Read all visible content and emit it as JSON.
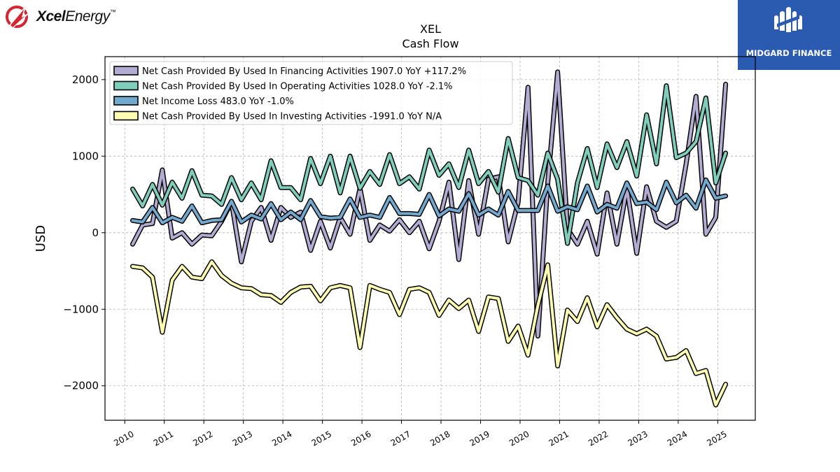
{
  "branding": {
    "left_logo_bold": "Xcel",
    "left_logo_light": "Energy",
    "left_logo_mark": "™",
    "right_logo_text": "MIDGARD FINANCE"
  },
  "colors": {
    "financing": "#b2abd2",
    "operating": "#7fcdbb",
    "net_income": "#74a9cf",
    "investing": "#ffffb3",
    "outline": "#000000",
    "brand_blue": "#2a5bb0",
    "xcel_red": "#d6252f"
  },
  "chart_data": {
    "type": "line",
    "title": "XEL",
    "subtitle": "Cash Flow",
    "xlabel": "",
    "ylabel": "USD",
    "xlim": [
      2009.5,
      2025.95
    ],
    "ylim": [
      -2450,
      2300
    ],
    "yticks": [
      -2000,
      -1000,
      0,
      1000,
      2000
    ],
    "ytick_labels": [
      "−2000",
      "−1000",
      "0",
      "1000",
      "2000"
    ],
    "xticks": [
      2010,
      2011,
      2012,
      2013,
      2014,
      2015,
      2016,
      2017,
      2018,
      2019,
      2020,
      2021,
      2022,
      2023,
      2024,
      2025
    ],
    "xtick_labels": [
      "2010",
      "2011",
      "2012",
      "2013",
      "2014",
      "2015",
      "2016",
      "2017",
      "2018",
      "2019",
      "2020",
      "2021",
      "2022",
      "2023",
      "2024",
      "2025"
    ],
    "grid": true,
    "legend_position": "top-left",
    "x": [
      2010.2,
      2010.45,
      2010.7,
      2010.95,
      2011.2,
      2011.45,
      2011.7,
      2011.95,
      2012.2,
      2012.45,
      2012.7,
      2012.95,
      2013.2,
      2013.45,
      2013.7,
      2013.95,
      2014.2,
      2014.45,
      2014.7,
      2014.95,
      2015.2,
      2015.45,
      2015.7,
      2015.95,
      2016.2,
      2016.45,
      2016.7,
      2016.95,
      2017.2,
      2017.45,
      2017.7,
      2017.95,
      2018.2,
      2018.45,
      2018.7,
      2018.95,
      2019.2,
      2019.45,
      2019.7,
      2019.95,
      2020.2,
      2020.45,
      2020.7,
      2020.95,
      2021.2,
      2021.45,
      2021.7,
      2021.95,
      2022.2,
      2022.45,
      2022.7,
      2022.95,
      2023.2,
      2023.45,
      2023.7,
      2023.95,
      2024.2,
      2024.45,
      2024.7,
      2024.95,
      2025.2
    ],
    "series": [
      {
        "name": "Net Cash Provided By Used In Financing Activities",
        "legend_label": "Net Cash Provided By Used In Financing Activities  1907.0 YoY +117.2%",
        "color_key": "financing",
        "values": [
          -150,
          100,
          120,
          820,
          -70,
          0,
          -150,
          -30,
          -40,
          150,
          400,
          -380,
          150,
          330,
          -100,
          330,
          200,
          270,
          -230,
          150,
          -200,
          200,
          -20,
          580,
          -100,
          100,
          20,
          170,
          0,
          150,
          -210,
          150,
          660,
          -350,
          680,
          -20,
          700,
          730,
          -120,
          400,
          1900,
          -1350,
          650,
          2100,
          50,
          -150,
          150,
          -280,
          520,
          -150,
          580,
          -270,
          600,
          150,
          70,
          150,
          900,
          1780,
          -20,
          200,
          1940
        ]
      },
      {
        "name": "Net Cash Provided By Used In Operating Activities",
        "legend_label": "Net Cash Provided By Used In Operating Activities  1028.0 YoY -2.1%",
        "color_key": "operating",
        "values": [
          570,
          350,
          630,
          360,
          660,
          450,
          810,
          490,
          480,
          370,
          720,
          430,
          650,
          430,
          940,
          590,
          590,
          430,
          970,
          640,
          1000,
          520,
          1000,
          580,
          800,
          630,
          1020,
          640,
          730,
          570,
          1080,
          750,
          900,
          590,
          1080,
          640,
          800,
          530,
          1230,
          720,
          680,
          490,
          1040,
          700,
          -140,
          650,
          1100,
          590,
          1160,
          850,
          1190,
          740,
          1540,
          900,
          1920,
          980,
          1040,
          1190,
          1760,
          650,
          1040
        ]
      },
      {
        "name": "Net Income Loss",
        "legend_label": "Net Income Loss  483.0 YoY -1.0%",
        "color_key": "net_income",
        "values": [
          160,
          140,
          330,
          130,
          200,
          150,
          350,
          130,
          160,
          170,
          410,
          140,
          230,
          180,
          380,
          170,
          270,
          170,
          420,
          210,
          190,
          200,
          440,
          200,
          230,
          200,
          460,
          250,
          250,
          240,
          500,
          220,
          310,
          280,
          510,
          230,
          310,
          230,
          540,
          290,
          290,
          290,
          610,
          280,
          340,
          300,
          610,
          270,
          370,
          320,
          650,
          380,
          400,
          300,
          660,
          390,
          490,
          320,
          690,
          450,
          480
        ]
      },
      {
        "name": "Net Cash Provided By Used In Investing Activities",
        "legend_label": "Net Cash Provided By Used In Investing Activities  -1991.0 YoY N/A",
        "color_key": "investing",
        "values": [
          -440,
          -460,
          -580,
          -1300,
          -620,
          -440,
          -580,
          -600,
          -380,
          -560,
          -660,
          -720,
          -730,
          -810,
          -820,
          -910,
          -780,
          -710,
          -700,
          -890,
          -720,
          -690,
          -720,
          -1500,
          -690,
          -740,
          -780,
          -1070,
          -740,
          -720,
          -780,
          -1080,
          -880,
          -990,
          -880,
          -1290,
          -840,
          -860,
          -1420,
          -1220,
          -1600,
          -950,
          -420,
          -1740,
          -1010,
          -1160,
          -850,
          -1230,
          -940,
          -1110,
          -1260,
          -1320,
          -1260,
          -1350,
          -1650,
          -1630,
          -1540,
          -1840,
          -1800,
          -2250,
          -1980
        ]
      }
    ]
  }
}
